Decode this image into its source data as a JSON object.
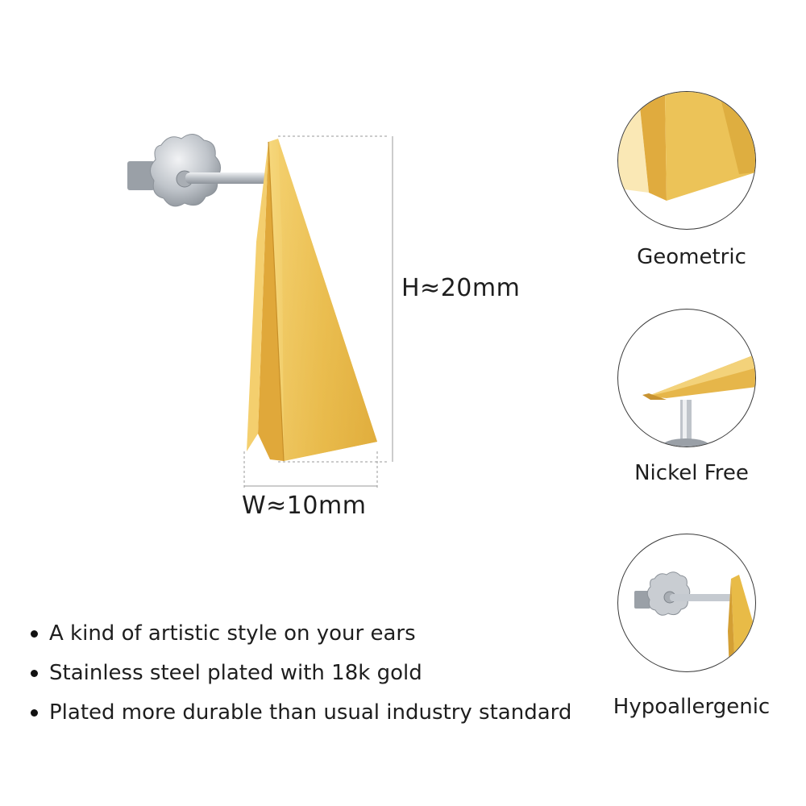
{
  "dimensions": {
    "height_label": "H≈20mm",
    "width_label": "W≈10mm"
  },
  "features": [
    {
      "label": "Geometric",
      "icon": "triangle-closeup-icon"
    },
    {
      "label": "Nickel Free",
      "icon": "post-closeup-icon"
    },
    {
      "label": "Hypoallergenic",
      "icon": "earring-back-icon"
    }
  ],
  "bullets": [
    "A kind of artistic style on your ears",
    "Stainless steel plated with 18k gold",
    "Plated more durable than usual industry standard"
  ],
  "colors": {
    "gold": "#E3B443",
    "gold_dark": "#C8902A",
    "silver": "#C9CDD2",
    "background": "#FFFFFF"
  }
}
